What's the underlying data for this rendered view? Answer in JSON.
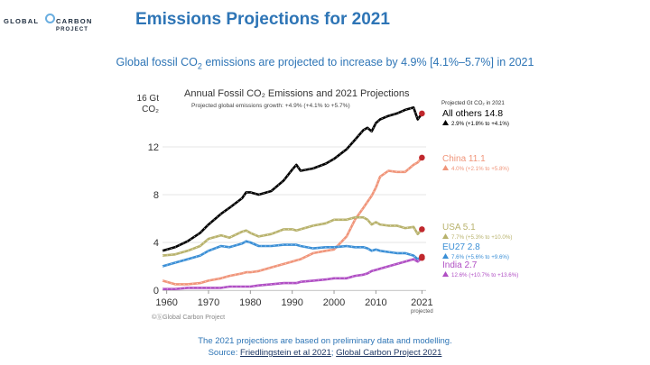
{
  "header": {
    "logo": {
      "word1": "GLOBAL",
      "word2": "CARBON",
      "word3": "PROJECT"
    },
    "title": "Emissions Projections for 2021",
    "subtitle_prefix": "Global fossil CO",
    "subtitle_sub": "2",
    "subtitle_suffix": " emissions are projected to increase by 4.9% [4.1%–5.7%] in 2021"
  },
  "footer": {
    "note": "The 2021 projections are based on preliminary data and modelling.",
    "source_prefix": "Source: ",
    "source_link1": "Friedlingstein et al 2021",
    "source_sep": "; ",
    "source_link2": "Global Carbon Project 2021"
  },
  "colors": {
    "accent": "#2e75b6",
    "all_others": "#000000",
    "china": "#f0957a",
    "usa": "#b8b26c",
    "eu27": "#3b8fd6",
    "india": "#b04fc4",
    "projection_dot": "#c0282d"
  },
  "chart_data": {
    "type": "line",
    "title": "Annual Fossil CO₂ Emissions and 2021 Projections",
    "subtitle": "Projected global emissions growth: +4.9% (+4.1% to +5.7%)",
    "ylabel_line1": "16 Gt",
    "ylabel_line2": "CO₂",
    "ylim": [
      0,
      16
    ],
    "xlim": [
      1959,
      2022
    ],
    "yticks": [
      0,
      4,
      8,
      12
    ],
    "xticks": [
      1960,
      1970,
      1980,
      1990,
      2000,
      2010,
      2021
    ],
    "xtick_note": "projected",
    "legend_header": "Projected Gt CO₂ in 2021",
    "credit": "©ⓑGlobal Carbon Project",
    "x": [
      1959,
      1962,
      1965,
      1968,
      1970,
      1973,
      1975,
      1978,
      1979,
      1980,
      1982,
      1985,
      1988,
      1990,
      1991,
      1992,
      1995,
      1998,
      2000,
      2003,
      2005,
      2007,
      2008,
      2009,
      2010,
      2011,
      2013,
      2015,
      2017,
      2019,
      2020,
      2021
    ],
    "series": [
      {
        "name": "All others",
        "label": "All others 14.8",
        "growth": "2.9% (+1.8% to +4.1%)",
        "values": [
          3.3,
          3.6,
          4.1,
          4.8,
          5.5,
          6.4,
          6.9,
          7.7,
          8.2,
          8.2,
          8.0,
          8.3,
          9.2,
          10.1,
          10.5,
          10.0,
          10.2,
          10.6,
          11.0,
          11.8,
          12.6,
          13.4,
          13.6,
          13.3,
          14.0,
          14.3,
          14.6,
          14.8,
          15.1,
          15.3,
          14.3,
          14.8
        ]
      },
      {
        "name": "China",
        "label": "China 11.1",
        "growth": "4.0% (+2.1% to +5.8%)",
        "values": [
          0.8,
          0.5,
          0.5,
          0.6,
          0.8,
          1.0,
          1.2,
          1.4,
          1.5,
          1.5,
          1.6,
          1.9,
          2.2,
          2.4,
          2.5,
          2.6,
          3.1,
          3.3,
          3.4,
          4.5,
          5.9,
          6.9,
          7.4,
          7.9,
          8.6,
          9.5,
          10.0,
          9.9,
          9.9,
          10.5,
          10.7,
          11.1
        ]
      },
      {
        "name": "USA",
        "label": "USA 5.1",
        "growth": "7.7% (+5.3% to +10.0%)",
        "values": [
          2.9,
          3.0,
          3.3,
          3.7,
          4.3,
          4.6,
          4.4,
          4.9,
          5.0,
          4.8,
          4.5,
          4.7,
          5.1,
          5.1,
          5.0,
          5.1,
          5.4,
          5.6,
          5.9,
          5.9,
          6.1,
          6.1,
          5.9,
          5.5,
          5.7,
          5.5,
          5.4,
          5.4,
          5.2,
          5.3,
          4.7,
          5.1
        ]
      },
      {
        "name": "EU27",
        "label": "EU27 2.8",
        "growth": "7.6% (+5.6% to +9.6%)",
        "values": [
          2.0,
          2.3,
          2.6,
          2.9,
          3.3,
          3.7,
          3.6,
          3.9,
          4.1,
          4.0,
          3.7,
          3.7,
          3.8,
          3.8,
          3.8,
          3.7,
          3.5,
          3.6,
          3.6,
          3.7,
          3.6,
          3.6,
          3.5,
          3.3,
          3.4,
          3.3,
          3.2,
          3.1,
          3.1,
          2.9,
          2.6,
          2.8
        ]
      },
      {
        "name": "India",
        "label": "India 2.7",
        "growth": "12.6% (+10.7% to +13.6%)",
        "values": [
          0.1,
          0.1,
          0.2,
          0.2,
          0.2,
          0.2,
          0.3,
          0.3,
          0.3,
          0.3,
          0.4,
          0.5,
          0.6,
          0.6,
          0.6,
          0.7,
          0.8,
          0.9,
          1.0,
          1.0,
          1.2,
          1.3,
          1.4,
          1.6,
          1.7,
          1.8,
          2.0,
          2.2,
          2.4,
          2.6,
          2.4,
          2.7
        ]
      }
    ]
  }
}
